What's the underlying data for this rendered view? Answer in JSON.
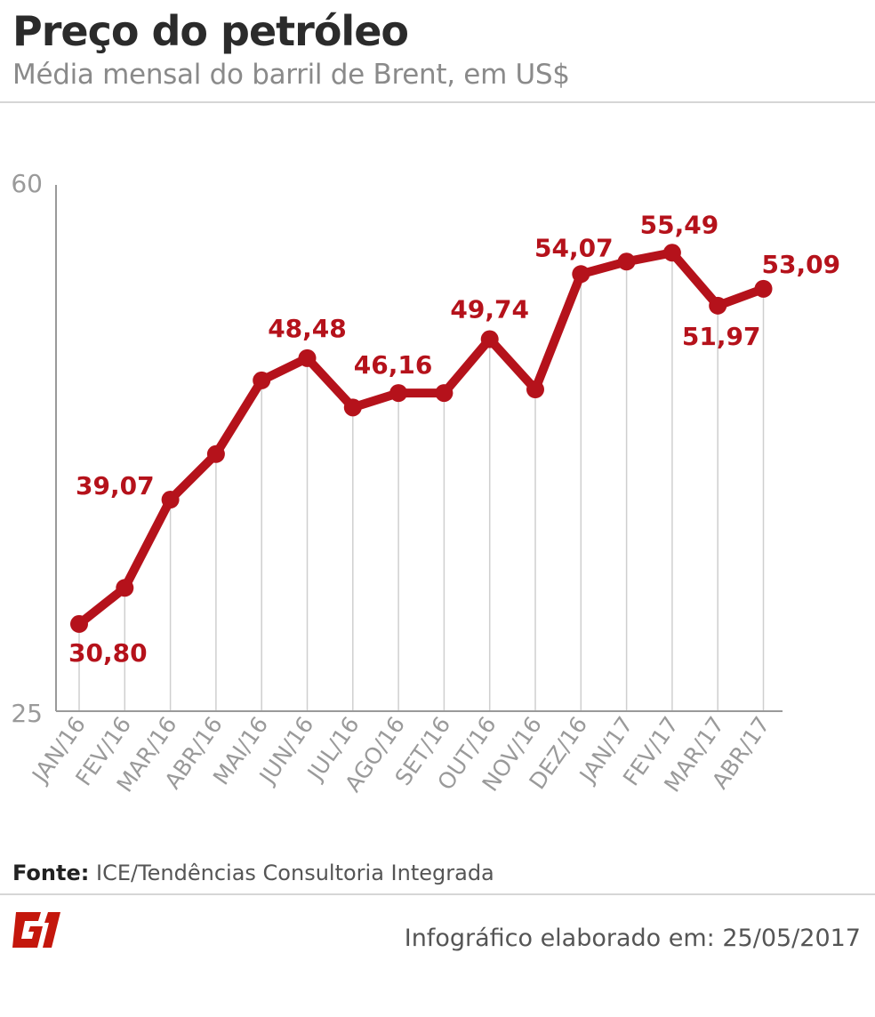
{
  "header": {
    "title": "Preço do petróleo",
    "subtitle": "Média mensal do barril de Brent, em US$"
  },
  "chart_data": {
    "type": "line",
    "categories": [
      "JAN/16",
      "FEV/16",
      "MAR/16",
      "ABR/16",
      "MAI/16",
      "JUN/16",
      "JUL/16",
      "AGO/16",
      "SET/16",
      "OUT/16",
      "NOV/16",
      "DEZ/16",
      "JAN/17",
      "FEV/17",
      "MAR/17",
      "ABR/17"
    ],
    "series": [
      {
        "values": [
          30.8,
          33.2,
          39.07,
          42.1,
          47.0,
          48.48,
          45.2,
          46.16,
          46.16,
          49.74,
          46.4,
          54.07,
          54.9,
          55.49,
          51.97,
          53.09
        ]
      }
    ],
    "data_labels": [
      {
        "index": 0,
        "text": "30,80"
      },
      {
        "index": 2,
        "text": "39,07"
      },
      {
        "index": 5,
        "text": "48,48"
      },
      {
        "index": 7,
        "text": "46,16"
      },
      {
        "index": 9,
        "text": "49,74"
      },
      {
        "index": 11,
        "text": "54,07"
      },
      {
        "index": 13,
        "text": "55,49"
      },
      {
        "index": 14,
        "text": "51,97"
      },
      {
        "index": 15,
        "text": "53,09"
      }
    ],
    "ylim": [
      25,
      60
    ],
    "yticks": [
      "25",
      "60"
    ],
    "grid": "vertical",
    "color": "#b5121b"
  },
  "footer": {
    "source_label": "Fonte:",
    "source_text": "ICE/Tendências Consultoria Integrada",
    "logo_text": "G1",
    "credit": "Infográfico elaborado em: 25/05/2017"
  }
}
